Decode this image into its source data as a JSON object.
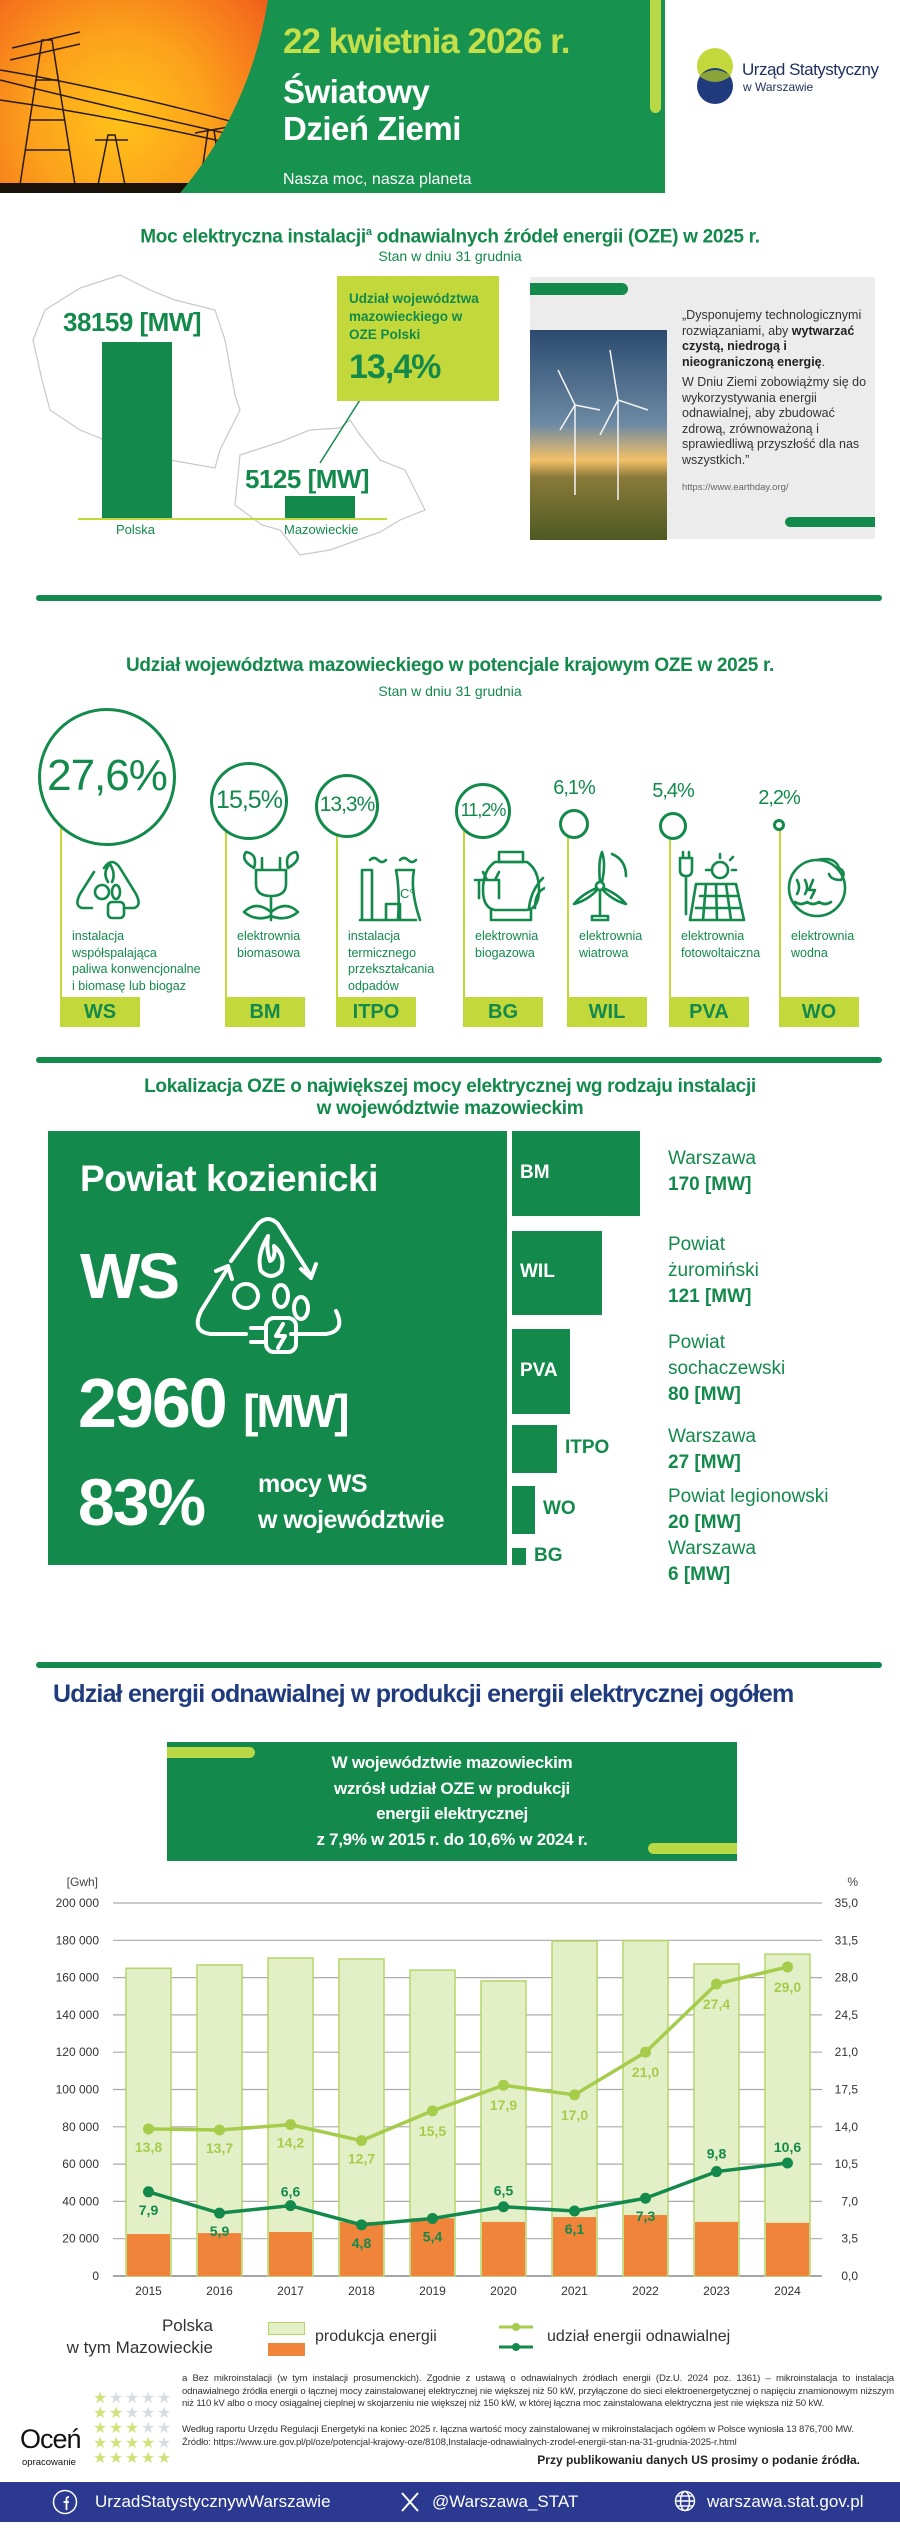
{
  "header": {
    "date": "22 kwietnia 2026 r.",
    "title_line1": "Światowy",
    "title_line2": "Dzień Ziemi",
    "motto": "Nasza moc, nasza planeta",
    "logo_line1": "Urząd Statystyczny",
    "logo_line2": "w Warszawie"
  },
  "section1": {
    "title": "Moc elektryczna instalacji",
    "title_sup": "a",
    "title_rest": " odnawialnych źródeł energii (OZE) w 2025 r.",
    "subtitle": "Stan w dniu 31 grudnia",
    "poland_value": "38159  [MW]",
    "poland_label": "Polska",
    "poland_mw": 38159,
    "mazowieckie_value": "5125  [MW]",
    "mazowieckie_label": "Mazowieckie",
    "mazowieckie_mw": 5125,
    "share_label": "Udział województwa mazowieckiego w OZE Polski",
    "share_value": "13,4%",
    "quote_p1_start": "„Dysponujemy technologicznymi rozwiązaniami, aby ",
    "quote_p1_bold": "wytwarzać czystą, niedrogą i nieograniczoną energię",
    "quote_p1_end": ".",
    "quote_p2": "W Dniu Ziemi zobowiążmy się do wykorzystywania energii odnawialnej, aby zbudować zdrową, zrównoważoną i sprawiedliwą przyszłość dla nas wszystkich.”",
    "quote_source": "https://www.earthday.org/"
  },
  "section2": {
    "title": "Udział województwa mazowieckiego w potencjale krajowym OZE w 2025 r.",
    "subtitle": "Stan w dniu 31 grudnia",
    "items": [
      {
        "pct": "27,6%",
        "value": 27.6,
        "desc": "instalacja\nwspółspalająca\npaliwa konwencjonalne\ni biomasę lub biogaz",
        "code": "WS",
        "icon": "recycle-fire-plug-icon"
      },
      {
        "pct": "15,5%",
        "value": 15.5,
        "desc": "elektrownia\nbiomasowa",
        "code": "BM",
        "icon": "plant-plug-icon"
      },
      {
        "pct": "13,3%",
        "value": 13.3,
        "desc": "instalacja\ntermicznego\nprzekształcania\nodpadów",
        "code": "ITPO",
        "icon": "factory-icon"
      },
      {
        "pct": "11,2%",
        "value": 11.2,
        "desc": "elektrownia\nbiogazowa",
        "code": "BG",
        "icon": "cow-biogas-icon"
      },
      {
        "pct": "6,1%",
        "value": 6.1,
        "desc": "elektrownia\nwiatrowa",
        "code": "WIL",
        "icon": "wind-turbine-icon"
      },
      {
        "pct": "5,4%",
        "value": 5.4,
        "desc": "elektrownia\nfotowoltaiczna",
        "code": "PVA",
        "icon": "solar-panel-icon"
      },
      {
        "pct": "2,2%",
        "value": 2.2,
        "desc": "elektrownia\nwodna",
        "code": "WO",
        "icon": "wave-icon"
      }
    ]
  },
  "section3": {
    "title_line1": "Lokalizacja OZE o największej mocy elektrycznej wg rodzaju instalacji",
    "title_line2": "w województwie mazowieckim",
    "main": {
      "location": "Powiat kozienicki",
      "code": "WS",
      "value": "2960",
      "unit": "[MW]",
      "share": "83%",
      "share_text1": "mocy WS",
      "share_text2": "w województwie"
    },
    "items": [
      {
        "code": "BM",
        "location": "Warszawa",
        "value": "170 [MW]",
        "mw": 170
      },
      {
        "code": "WIL",
        "location": "Powiat\nżuromiński",
        "value": "121 [MW]",
        "mw": 121
      },
      {
        "code": "PVA",
        "location": "Powiat\nsochaczewski",
        "value": "80 [MW]",
        "mw": 80
      },
      {
        "code": "ITPO",
        "location": "Warszawa",
        "value": "27 [MW]",
        "mw": 27
      },
      {
        "code": "WO",
        "location": "Powiat legionowski",
        "value": "20 [MW]",
        "mw": 20
      },
      {
        "code": "BG",
        "location": "Warszawa",
        "value": "6 [MW]",
        "mw": 6
      }
    ]
  },
  "section4": {
    "title": "Udział energii odnawialnej w produkcji energii elektrycznej ogółem",
    "highlight": [
      "W województwie mazowieckim",
      "wzrósł udział OZE w produkcji",
      "energii elektrycznej",
      "z 7,9% w 2015 r. do 10,6% w 2024 r."
    ]
  },
  "chart_data": {
    "type": "bar+line",
    "left_axis_label": "[Gwh]",
    "right_axis_label": "%",
    "ylim_left": [
      0,
      200000
    ],
    "ylim_right": [
      0,
      35
    ],
    "left_ticks": [
      "0",
      "20 000",
      "40 000",
      "60 000",
      "80 000",
      "100 000",
      "120 000",
      "140 000",
      "160 000",
      "180 000",
      "200 000"
    ],
    "right_ticks": [
      "0,0",
      "3,5",
      "7,0",
      "10,5",
      "14,0",
      "17,5",
      "21,0",
      "24,5",
      "28,0",
      "31,5",
      "35,0"
    ],
    "grid": true,
    "categories": [
      "2015",
      "2016",
      "2017",
      "2018",
      "2019",
      "2020",
      "2021",
      "2022",
      "2023",
      "2024"
    ],
    "bars": [
      {
        "name": "Polska",
        "legend": "produkcja energii",
        "color": "#e3efc6",
        "values": [
          165000,
          166800,
          170500,
          170000,
          164000,
          158200,
          179600,
          179800,
          167300,
          172600
        ]
      },
      {
        "name": "w tym Mazowieckie",
        "legend": "produkcja energii",
        "color": "#f0843a",
        "values": [
          22500,
          23000,
          23600,
          29000,
          31000,
          29000,
          31600,
          32700,
          29000,
          28500
        ]
      }
    ],
    "lines": [
      {
        "name": "Polska",
        "legend": "udział energii odnawialnej",
        "color": "#a6cc4c",
        "values": [
          13.8,
          13.7,
          14.2,
          12.7,
          15.5,
          17.9,
          17.0,
          21.0,
          27.4,
          29.0
        ],
        "labels": [
          "13,8",
          "13,7",
          "14,2",
          "12,7",
          "15,5",
          "17,9",
          "17,0",
          "21,0",
          "27,4",
          "29,0"
        ]
      },
      {
        "name": "w tym Mazowieckie",
        "legend": "udział energii odnawialnej",
        "color": "#138a4b",
        "values": [
          7.9,
          5.9,
          6.6,
          4.8,
          5.4,
          6.5,
          6.1,
          7.3,
          9.8,
          10.6
        ],
        "labels": [
          "7,9",
          "5,9",
          "6,6",
          "4,8",
          "5,4",
          "6,5",
          "6,1",
          "7,3",
          "9,8",
          "10,6"
        ]
      }
    ],
    "legend": {
      "polska": "Polska",
      "mazowieckie": "w tym Mazowieckie",
      "bars": "produkcja energii",
      "lines": "udział energii odnawialnej"
    }
  },
  "footnotes": {
    "note_a": "a  Bez mikroinstalacji (w tym instalacji prosumenckich). Zgodnie z ustawą o odnawialnych źródłach energii (Dz.U. 2024 poz. 1361) –  mikroinstalacja to instalacja odnawialnego źródła energii o łącznej mocy zainstalowanej elektrycznej nie większej niż 50 kW, przyłączone do sieci elektroenergetycznej o napięciu znamionowym niższym niż 110 kV albo o mocy osiągalnej cieplnej w skojarzeniu nie większej niż 150 kW, w której łączna moc zainstalowana elektryczna jest nie większa niż 50 kW.",
    "ure": "Według raportu Urzędu Regulacji Energetyki na koniec 2025 r. łączna wartość mocy zainstalowanej w mikroinstalacjach ogółem w Polsce wyniosła 13 876,700 MW.",
    "source": "Źródło: https://www.ure.gov.pl/pl/oze/potencjal-krajowy-oze/8108,Instalacje-odnawialnych-zrodel-energii-stan-na-31-grudnia-2025-r.html",
    "publish": "Przy publikowaniu danych US prosimy o podanie źródła.",
    "rate_title": "Oceń",
    "rate_sub": "opracowanie"
  },
  "footer": {
    "facebook": "UrzadStatystycznywWarszawie",
    "x": "@Warszawa_STAT",
    "web": "warszawa.stat.gov.pl"
  },
  "colors": {
    "green": "#138a4b",
    "lime": "#c3d93b",
    "orange": "#f0843a",
    "navy": "#1f3a7d",
    "footer": "#2b3990"
  }
}
